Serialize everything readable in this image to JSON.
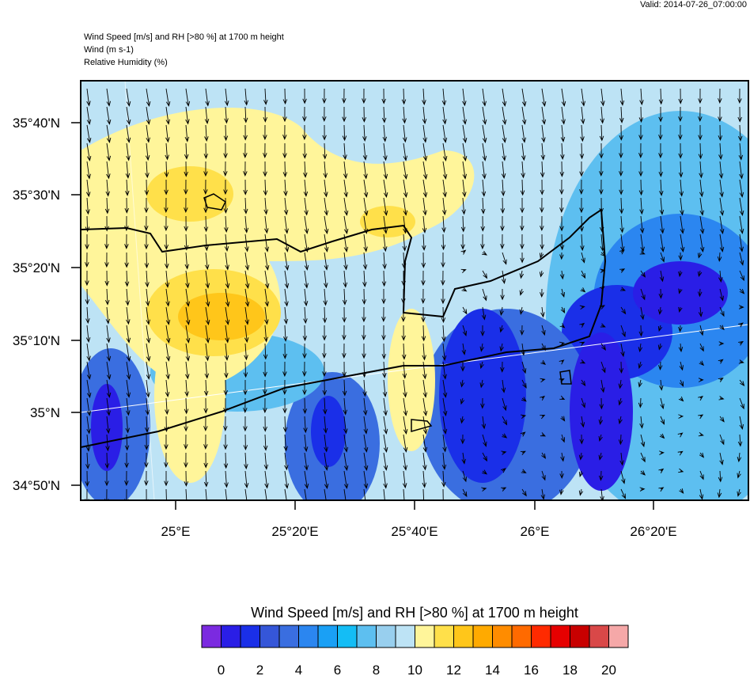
{
  "header": {
    "valid": "Valid: 2014-07-26_07:00:00",
    "lines": [
      "Wind Speed [m/s] and RH [>80 %] at 1700 m height",
      "Wind   (m s-1)",
      "Relative Humidity   (%)"
    ]
  },
  "map": {
    "lat_labels": [
      "35°40'N",
      "35°30'N",
      "35°20'N",
      "35°10'N",
      "35°N",
      "34°50'N"
    ],
    "lon_labels": [
      "25°E",
      "25°20'E",
      "25°40'E",
      "26°E",
      "26°20'E"
    ]
  },
  "colorbar": {
    "title": "Wind Speed [m/s] and RH [>80 %] at 1700 m height",
    "colors": [
      "#7b2ae0",
      "#2a1ee6",
      "#1a2fe8",
      "#3556d8",
      "#3a6ee0",
      "#2b86f0",
      "#1aa0f5",
      "#14bdf5",
      "#5dbff0",
      "#98cfee",
      "#bde3f5",
      "#fff59a",
      "#ffe04a",
      "#ffc61a",
      "#ffaa00",
      "#ff8c00",
      "#ff6a00",
      "#ff2a00",
      "#e60000",
      "#c80000",
      "#d94848",
      "#f5a8a8"
    ],
    "ticks": [
      0,
      2,
      4,
      6,
      8,
      10,
      12,
      14,
      16,
      18,
      20
    ]
  }
}
